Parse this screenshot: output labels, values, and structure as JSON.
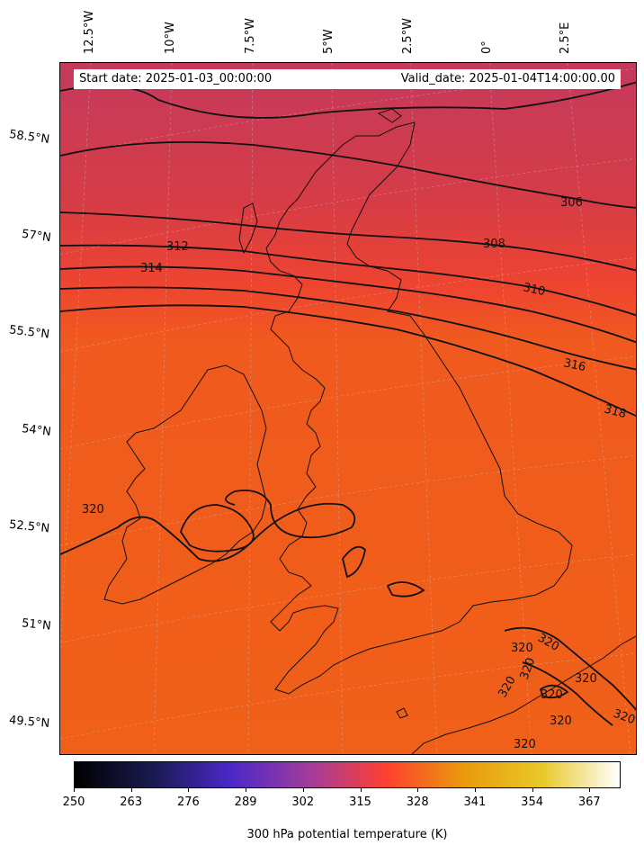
{
  "header": {
    "start_date": "Start date: 2025-01-03_00:00:00",
    "valid_date": "Valid_date: 2025-01-04T14:00:00.00"
  },
  "longitude_labels": [
    "12.5°W",
    "10°W",
    "7.5°W",
    "5°W",
    "2.5°W",
    "0°",
    "2.5°E"
  ],
  "latitude_labels": [
    "58.5°N",
    "57°N",
    "55.5°N",
    "54°N",
    "52.5°N",
    "51°N",
    "49.5°N"
  ],
  "contour_labels": [
    "306",
    "308",
    "310",
    "312",
    "314",
    "316",
    "318",
    "320",
    "320",
    "320",
    "320",
    "320",
    "320",
    "320",
    "320",
    "320",
    "320"
  ],
  "colorbar": {
    "label": "300 hPa potential temperature (K)",
    "ticks": [
      "250",
      "263",
      "276",
      "289",
      "302",
      "315",
      "328",
      "341",
      "354",
      "367"
    ],
    "colormap": "CMRmap",
    "stops": [
      "#000000",
      "#1a1a50",
      "#4a28c8",
      "#a03c9c",
      "#ff4030",
      "#e89a0c",
      "#e8c828",
      "#ffffff"
    ]
  },
  "map": {
    "field_colors": {
      "north": "#c43a5c",
      "mid": "#ee4430",
      "south": "#f06018"
    },
    "projection": "rotated polar",
    "gridlines": "dashed"
  }
}
